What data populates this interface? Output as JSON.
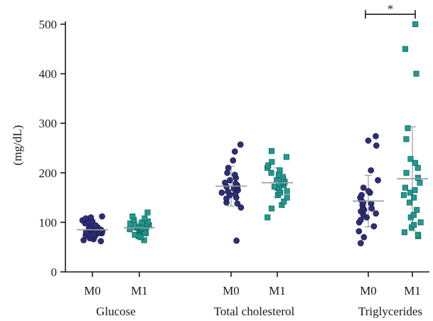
{
  "chart_data": {
    "type": "scatter",
    "title": "",
    "xlabel": "",
    "ylabel": "(mg/dL)",
    "ylim": [
      0,
      500
    ],
    "y_ticks": [
      0,
      100,
      200,
      300,
      400,
      500
    ],
    "grid": false,
    "colors": {
      "M0": "#2e2f7a",
      "M1": "#1f9a92",
      "axis": "#1a1a1a",
      "summary": "#9a9a9a"
    },
    "groups": [
      {
        "label": "Glucose",
        "series": [
          {
            "label": "M0",
            "marker": "circle",
            "mean": 85,
            "sd": 13,
            "values": [
              62,
              64,
              66,
              68,
              70,
              72,
              74,
              75,
              76,
              78,
              78,
              80,
              82,
              82,
              84,
              85,
              86,
              86,
              88,
              90,
              92,
              94,
              96,
              98,
              100,
              102,
              104,
              108,
              110,
              112
            ]
          },
          {
            "label": "M1",
            "marker": "square",
            "mean": 89,
            "sd": 12,
            "values": [
              64,
              70,
              72,
              75,
              78,
              80,
              82,
              84,
              85,
              86,
              87,
              88,
              89,
              90,
              90,
              92,
              93,
              94,
              95,
              96,
              97,
              98,
              100,
              102,
              105,
              108,
              112,
              120
            ]
          }
        ]
      },
      {
        "label": "Total cholesterol",
        "series": [
          {
            "label": "M0",
            "marker": "circle",
            "mean": 173,
            "sd": 40,
            "values": [
              63,
              130,
              138,
              140,
              148,
              150,
              155,
              158,
              160,
              162,
              165,
              168,
              170,
              172,
              175,
              176,
              178,
              180,
              185,
              190,
              196,
              200,
              210,
              225,
              243,
              257
            ]
          },
          {
            "label": "M1",
            "marker": "square",
            "mean": 180,
            "sd": 30,
            "values": [
              110,
              128,
              135,
              142,
              150,
              155,
              160,
              163,
              165,
              170,
              172,
              175,
              178,
              180,
              182,
              185,
              188,
              192,
              196,
              200,
              205,
              210,
              215,
              222,
              232,
              244
            ]
          }
        ]
      },
      {
        "label": "Triglycerides",
        "series": [
          {
            "label": "M0",
            "marker": "circle",
            "mean": 143,
            "sd": 52,
            "values": [
              58,
              70,
              82,
              92,
              100,
              105,
              110,
              115,
              118,
              122,
              125,
              128,
              130,
              135,
              138,
              140,
              145,
              150,
              155,
              160,
              163,
              170,
              185,
              205,
              255,
              265,
              274
            ]
          },
          {
            "label": "M1",
            "marker": "square",
            "mean": 188,
            "sd": 105,
            "values": [
              72,
              75,
              80,
              90,
              95,
              100,
              110,
              115,
              125,
              140,
              150,
              155,
              160,
              165,
              170,
              180,
              190,
              200,
              210,
              220,
              228,
              268,
              290,
              400,
              450,
              500
            ]
          }
        ]
      }
    ],
    "annotations": [
      {
        "type": "significance_bracket",
        "text": "*",
        "group": "Triglycerides",
        "between": [
          "M0",
          "M1"
        ],
        "y": 520
      }
    ]
  }
}
